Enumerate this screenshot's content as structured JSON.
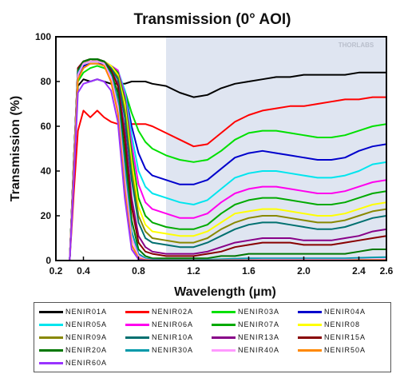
{
  "chart_data": {
    "type": "line",
    "title": "Transmission (0° AOI)",
    "xlabel": "Wavelength (µm)",
    "ylabel": "Transmission (%)",
    "xlim": [
      0.2,
      2.6
    ],
    "ylim": [
      0,
      100
    ],
    "xticks": [
      0.2,
      0.4,
      0.8,
      1.2,
      1.6,
      2.0,
      2.4,
      2.6
    ],
    "xtick_labels": [
      "0.2",
      "0.4",
      "0.8",
      "1.2",
      "1.6",
      "2.0",
      "2.4",
      "2.6"
    ],
    "yticks": [
      0,
      20,
      40,
      60,
      80,
      100
    ],
    "ytick_labels": [
      "0",
      "20",
      "40",
      "60",
      "80",
      "100"
    ],
    "shaded_region": {
      "x_from": 1.0,
      "x_to": 2.6,
      "color": "#dfe5f1"
    },
    "watermark": "THORLABS",
    "legend_placement": "below",
    "x": [
      0.2,
      0.25,
      0.3,
      0.33,
      0.36,
      0.4,
      0.45,
      0.5,
      0.55,
      0.6,
      0.65,
      0.7,
      0.75,
      0.8,
      0.85,
      0.9,
      1.0,
      1.1,
      1.2,
      1.3,
      1.4,
      1.5,
      1.6,
      1.7,
      1.8,
      1.9,
      2.0,
      2.1,
      2.2,
      2.3,
      2.4,
      2.5,
      2.6
    ],
    "series": [
      {
        "name": "NENIR01A",
        "color": "#000000",
        "values": [
          0,
          0,
          0,
          45,
          78,
          81,
          80,
          81,
          80,
          79,
          79,
          79,
          80,
          80,
          80,
          79,
          78,
          75,
          73,
          74,
          77,
          79,
          80,
          81,
          82,
          82,
          83,
          83,
          83,
          83,
          84,
          84,
          84
        ]
      },
      {
        "name": "NENIR02A",
        "color": "#ff0000",
        "values": [
          0,
          0,
          0,
          30,
          58,
          67,
          64,
          67,
          64,
          62,
          61,
          61,
          61,
          61,
          61,
          60,
          57,
          54,
          51,
          52,
          57,
          62,
          65,
          67,
          68,
          69,
          69,
          70,
          71,
          72,
          72,
          73,
          73
        ]
      },
      {
        "name": "NENIR03A",
        "color": "#00e000",
        "values": [
          0,
          0,
          0,
          38,
          80,
          84,
          86,
          87,
          86,
          84,
          82,
          76,
          66,
          58,
          53,
          50,
          47,
          45,
          44,
          45,
          49,
          54,
          57,
          58,
          58,
          57,
          56,
          55,
          55,
          56,
          58,
          60,
          61
        ]
      },
      {
        "name": "NENIR04A",
        "color": "#0000cc",
        "values": [
          0,
          0,
          0,
          40,
          82,
          87,
          88,
          88,
          88,
          86,
          84,
          76,
          60,
          48,
          41,
          38,
          36,
          34,
          34,
          36,
          41,
          46,
          48,
          49,
          48,
          47,
          46,
          45,
          45,
          46,
          49,
          51,
          52
        ]
      },
      {
        "name": "NENIR05A",
        "color": "#00e5ee",
        "values": [
          0,
          0,
          0,
          41,
          83,
          88,
          89,
          89,
          89,
          87,
          85,
          76,
          56,
          40,
          33,
          30,
          28,
          26,
          25,
          27,
          32,
          37,
          39,
          40,
          40,
          39,
          38,
          37,
          37,
          38,
          40,
          43,
          44
        ]
      },
      {
        "name": "NENIR06A",
        "color": "#ff00ee",
        "values": [
          0,
          0,
          0,
          42,
          84,
          88,
          89,
          89,
          89,
          87,
          85,
          74,
          52,
          34,
          26,
          23,
          21,
          19,
          19,
          21,
          26,
          30,
          32,
          33,
          33,
          32,
          31,
          30,
          30,
          31,
          33,
          35,
          36
        ]
      },
      {
        "name": "NENIR07A",
        "color": "#00aa00",
        "values": [
          0,
          0,
          0,
          43,
          85,
          88,
          89,
          89,
          89,
          87,
          84,
          72,
          48,
          28,
          20,
          17,
          15,
          14,
          14,
          16,
          21,
          25,
          27,
          28,
          28,
          27,
          26,
          25,
          25,
          26,
          28,
          30,
          31
        ]
      },
      {
        "name": "NENIR08",
        "color": "#ffff00",
        "values": [
          0,
          0,
          0,
          43,
          85,
          89,
          89,
          90,
          89,
          87,
          83,
          70,
          44,
          24,
          16,
          13,
          12,
          11,
          11,
          13,
          17,
          21,
          22,
          23,
          23,
          22,
          21,
          20,
          20,
          21,
          23,
          25,
          26
        ]
      },
      {
        "name": "NENIR09A",
        "color": "#888800",
        "values": [
          0,
          0,
          0,
          44,
          85,
          89,
          89,
          90,
          89,
          86,
          82,
          67,
          40,
          20,
          13,
          10,
          9,
          8,
          8,
          10,
          14,
          17,
          19,
          20,
          20,
          19,
          18,
          17,
          17,
          18,
          20,
          22,
          23
        ]
      },
      {
        "name": "NENIR10A",
        "color": "#007070",
        "values": [
          0,
          0,
          0,
          44,
          86,
          89,
          90,
          90,
          89,
          86,
          81,
          64,
          36,
          17,
          10,
          8,
          7,
          6,
          6,
          8,
          11,
          14,
          16,
          17,
          17,
          16,
          15,
          14,
          14,
          15,
          17,
          19,
          20
        ]
      },
      {
        "name": "NENIR13A",
        "color": "#880088",
        "values": [
          0,
          0,
          0,
          44,
          86,
          89,
          90,
          90,
          89,
          85,
          79,
          58,
          28,
          11,
          6,
          4,
          3,
          3,
          3,
          4,
          6,
          8,
          9,
          10,
          10,
          10,
          9,
          9,
          9,
          10,
          11,
          13,
          14
        ]
      },
      {
        "name": "NENIR15A",
        "color": "#880000",
        "values": [
          0,
          0,
          0,
          44,
          86,
          89,
          90,
          90,
          89,
          85,
          78,
          54,
          24,
          8,
          4,
          3,
          2,
          2,
          2,
          3,
          4,
          6,
          7,
          8,
          8,
          8,
          7,
          7,
          7,
          8,
          9,
          10,
          11
        ]
      },
      {
        "name": "NENIR20A",
        "color": "#007700",
        "values": [
          0,
          0,
          0,
          44,
          85,
          89,
          90,
          90,
          89,
          84,
          75,
          48,
          18,
          5,
          2,
          1,
          1,
          1,
          1,
          1,
          2,
          2,
          3,
          3,
          3,
          3,
          3,
          3,
          3,
          3,
          4,
          5,
          5
        ]
      },
      {
        "name": "NENIR30A",
        "color": "#0099aa",
        "values": [
          0,
          0,
          0,
          43,
          84,
          88,
          89,
          89,
          88,
          83,
          72,
          42,
          13,
          3,
          1,
          0.5,
          0.3,
          0.3,
          0.3,
          0.4,
          0.6,
          0.8,
          1,
          1,
          1,
          1,
          1,
          1,
          1,
          1,
          1.2,
          1.4,
          1.5
        ]
      },
      {
        "name": "NENIR40A",
        "color": "#ff99ff",
        "values": [
          0,
          0,
          0,
          42,
          83,
          88,
          89,
          89,
          88,
          82,
          69,
          37,
          10,
          2,
          0.5,
          0.2,
          0.1,
          0.1,
          0.1,
          0.1,
          0.2,
          0.3,
          0.3,
          0.4,
          0.4,
          0.4,
          0.4,
          0.4,
          0.4,
          0.4,
          0.5,
          0.5,
          0.6
        ]
      },
      {
        "name": "NENIR50A",
        "color": "#ff8800",
        "values": [
          0,
          0,
          0,
          40,
          81,
          86,
          88,
          88,
          87,
          80,
          66,
          32,
          7,
          1,
          0.3,
          0.1,
          0.05,
          0.05,
          0.05,
          0.05,
          0.1,
          0.1,
          0.1,
          0.1,
          0.1,
          0.1,
          0.1,
          0.1,
          0.1,
          0.1,
          0.2,
          0.2,
          0.2
        ]
      },
      {
        "name": "NENIR60A",
        "color": "#9933ff",
        "values": [
          0,
          0,
          0,
          36,
          75,
          79,
          80,
          81,
          80,
          76,
          62,
          28,
          5,
          0.5,
          0.1,
          0.05,
          0,
          0,
          0,
          0,
          0,
          0,
          0,
          0,
          0,
          0,
          0,
          0,
          0,
          0,
          0,
          0,
          0
        ]
      }
    ]
  }
}
